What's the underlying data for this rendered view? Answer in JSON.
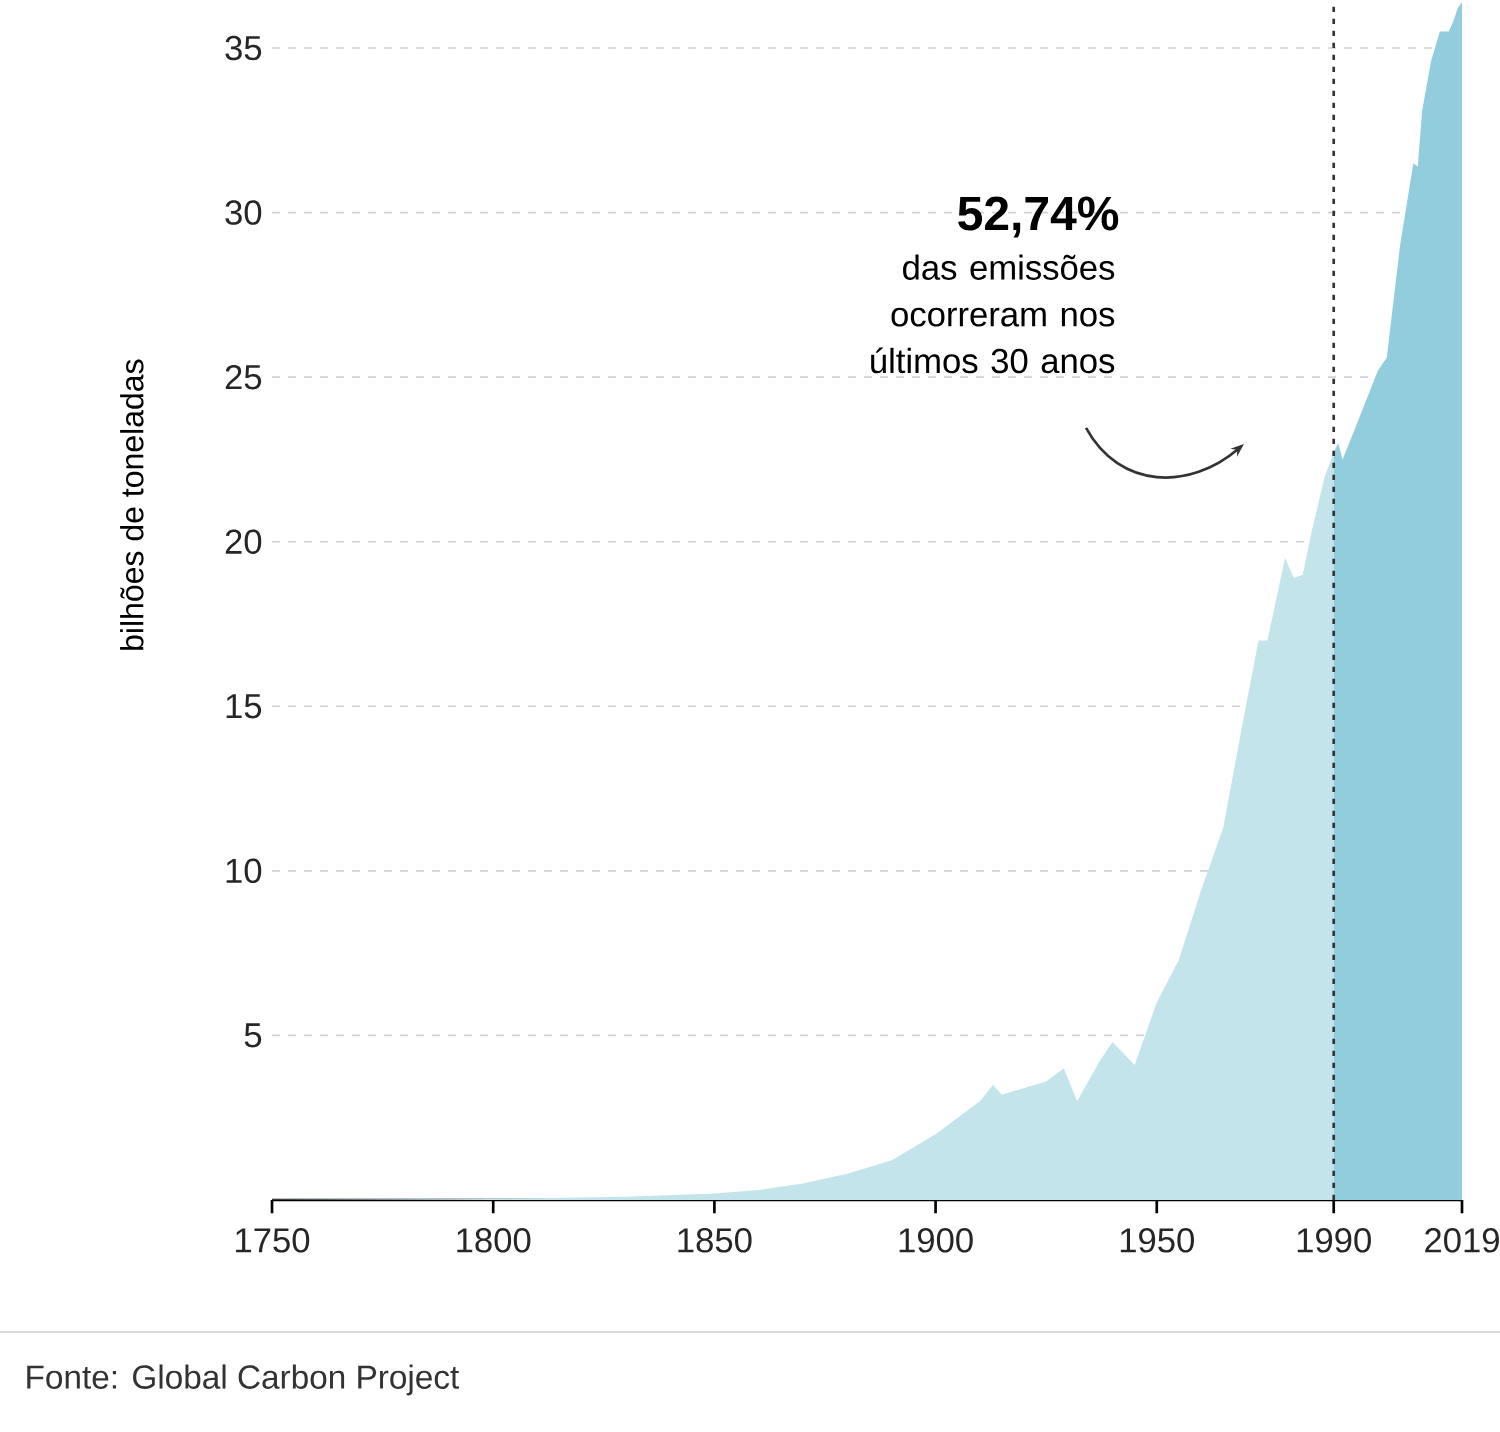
{
  "chart_data": {
    "type": "area",
    "ylabel": "bilhões de toneladas",
    "series": [
      {
        "color": "#c4e4eb",
        "x": [
          1750,
          1800,
          1830,
          1850,
          1860,
          1870,
          1880,
          1890,
          1900,
          1905,
          1910,
          1913,
          1915,
          1920,
          1925,
          1929,
          1932,
          1937,
          1940,
          1945,
          1950,
          1955,
          1960,
          1965,
          1970,
          1973,
          1975,
          1979,
          1981,
          1983,
          1985,
          1988,
          1990
        ],
        "values": [
          0.01,
          0.03,
          0.1,
          0.2,
          0.3,
          0.5,
          0.8,
          1.2,
          2.0,
          2.5,
          3.0,
          3.5,
          3.2,
          3.4,
          3.6,
          4.0,
          3.0,
          4.2,
          4.8,
          4.1,
          6.0,
          7.3,
          9.4,
          11.3,
          14.9,
          17.0,
          17.0,
          19.5,
          18.9,
          19.0,
          20.3,
          22.0,
          22.7
        ]
      },
      {
        "color": "#92cddd",
        "x": [
          1990,
          1991,
          1992,
          1995,
          2000,
          2002,
          2005,
          2008,
          2009,
          2010,
          2012,
          2014,
          2016,
          2017,
          2018,
          2019
        ],
        "values": [
          22.7,
          23.0,
          22.5,
          23.5,
          25.2,
          25.6,
          29.0,
          31.5,
          31.4,
          33.1,
          34.6,
          35.5,
          35.5,
          35.8,
          36.2,
          36.4
        ]
      }
    ],
    "xlim": [
      1750,
      2019
    ],
    "ylim": [
      0,
      36.4
    ],
    "xticks": [
      1750,
      1800,
      1850,
      1900,
      1950,
      1990,
      2019
    ],
    "yticks": [
      5,
      10,
      15,
      20,
      25,
      30,
      35
    ],
    "grid": "y",
    "ref_lines": [
      {
        "axis": "x",
        "value": 1990,
        "color": "#333333",
        "line_style": "dotted"
      }
    ],
    "annotations": [
      "52,74%",
      "das emissões ocorreram nos últimos 30 anos",
      "Fonte: Global Carbon Project"
    ]
  }
}
